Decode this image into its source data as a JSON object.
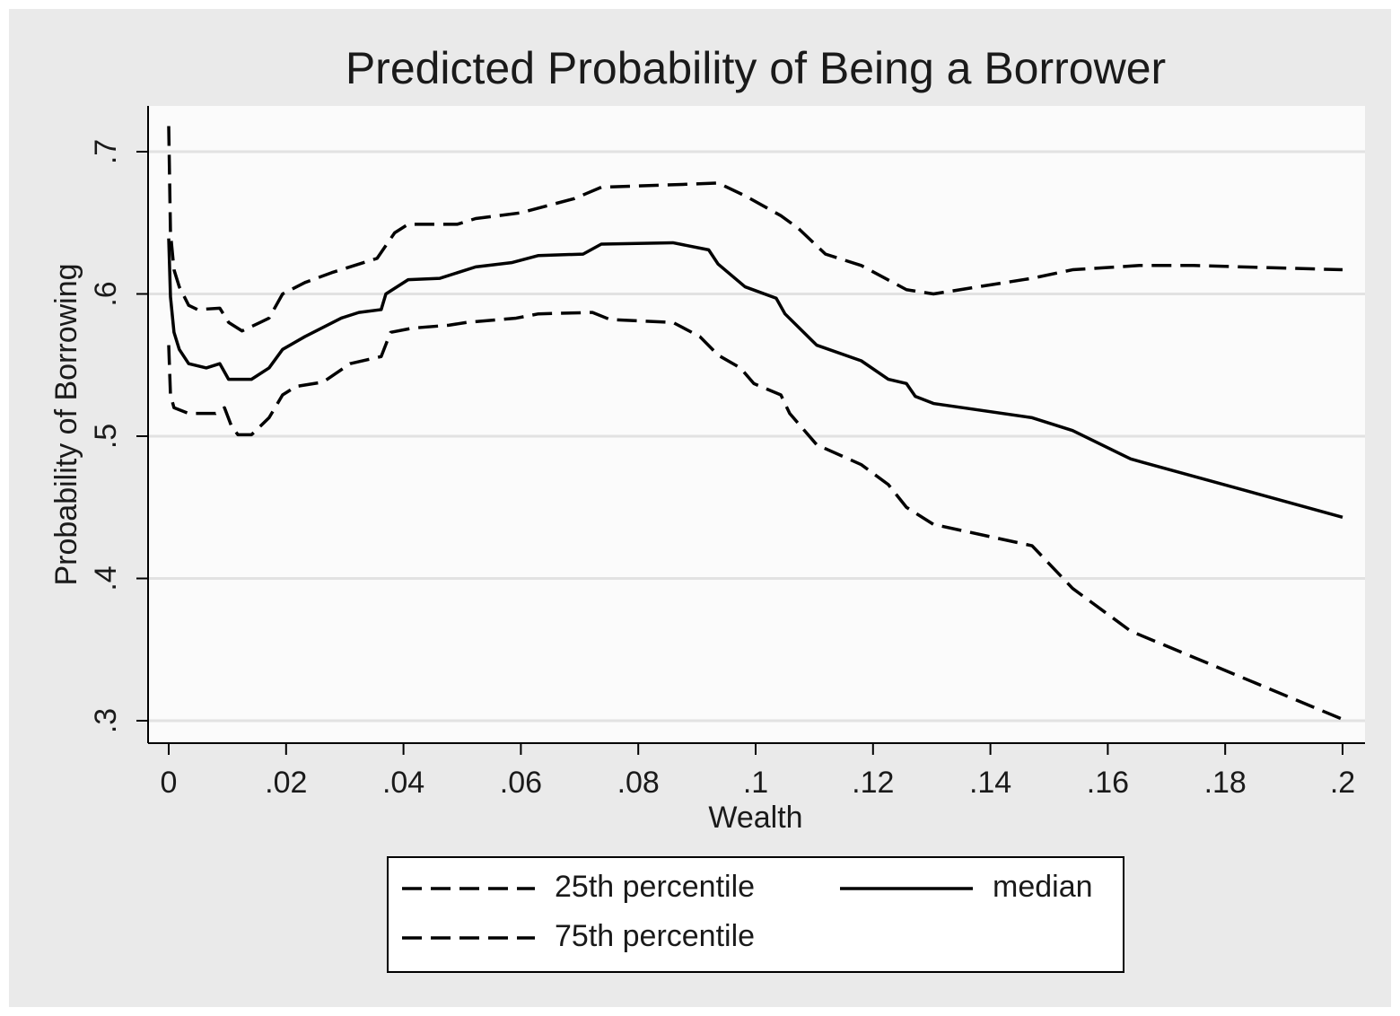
{
  "chart_data": {
    "type": "line",
    "title": "Predicted Probability of Being a Borrower",
    "x_label": "Wealth",
    "y_label": "Probability of Borrowing",
    "xlim": [
      0,
      0.2
    ],
    "ylim": [
      0.3,
      0.7
    ],
    "xticks": [
      0,
      {
        "value": 0.02,
        "label": ".02"
      },
      {
        "value": 0.04,
        "label": ".04"
      },
      {
        "value": 0.06,
        "label": ".06"
      },
      {
        "value": 0.08,
        "label": ".08"
      },
      {
        "value": 0.1,
        "label": ".1"
      },
      {
        "value": 0.12,
        "label": ".12"
      },
      {
        "value": 0.14,
        "label": ".14"
      },
      {
        "value": 0.16,
        "label": ".16"
      },
      {
        "value": 0.18,
        "label": ".18"
      },
      {
        "value": 0.2,
        "label": ".2"
      }
    ],
    "yticks": [
      {
        "value": 0.3,
        "label": ".3"
      },
      {
        "value": 0.4,
        "label": ".4"
      },
      {
        "value": 0.5,
        "label": ".5"
      },
      {
        "value": 0.6,
        "label": ".6"
      },
      {
        "value": 0.7,
        "label": ".7"
      }
    ],
    "grid": true,
    "series": [
      {
        "name": "25th percentile",
        "color": "#000000",
        "line_style": "dashed",
        "x": [
          0,
          0.0003,
          0.0009,
          0.0018,
          0.0034,
          0.0049,
          0.0087,
          0.0102,
          0.0125,
          0.0156,
          0.0171,
          0.0194,
          0.0232,
          0.0278,
          0.0355,
          0.0385,
          0.0408,
          0.0492,
          0.0523,
          0.0599,
          0.0691,
          0.0737,
          0.0875,
          0.0936,
          0.0982,
          0.1043,
          0.1073,
          0.1119,
          0.118,
          0.1257,
          0.1303,
          0.1394,
          0.1471,
          0.154,
          0.1654,
          0.1746,
          0.2
        ],
        "values": [
          0.718,
          0.643,
          0.617,
          0.605,
          0.592,
          0.589,
          0.59,
          0.58,
          0.574,
          0.58,
          0.583,
          0.6,
          0.608,
          0.615,
          0.625,
          0.643,
          0.649,
          0.649,
          0.653,
          0.657,
          0.667,
          0.675,
          0.677,
          0.678,
          0.669,
          0.655,
          0.646,
          0.628,
          0.62,
          0.603,
          0.6,
          0.606,
          0.611,
          0.617,
          0.62,
          0.62,
          0.617
        ]
      },
      {
        "name": "median",
        "color": "#000000",
        "line_style": "solid",
        "x": [
          0,
          0.0003,
          0.0009,
          0.0018,
          0.0034,
          0.0064,
          0.0087,
          0.0102,
          0.0141,
          0.0171,
          0.0194,
          0.0232,
          0.0294,
          0.0324,
          0.0362,
          0.037,
          0.0408,
          0.0462,
          0.0523,
          0.0584,
          0.063,
          0.0706,
          0.0737,
          0.0859,
          0.092,
          0.0936,
          0.0982,
          0.1035,
          0.105,
          0.1104,
          0.118,
          0.1226,
          0.1257,
          0.1272,
          0.1303,
          0.1471,
          0.154,
          0.1639,
          0.2
        ],
        "values": [
          0.639,
          0.598,
          0.573,
          0.561,
          0.551,
          0.548,
          0.551,
          0.54,
          0.54,
          0.548,
          0.561,
          0.57,
          0.583,
          0.587,
          0.589,
          0.6,
          0.61,
          0.611,
          0.619,
          0.622,
          0.627,
          0.628,
          0.635,
          0.636,
          0.631,
          0.621,
          0.605,
          0.597,
          0.586,
          0.564,
          0.553,
          0.54,
          0.537,
          0.528,
          0.523,
          0.513,
          0.504,
          0.484,
          0.443
        ]
      },
      {
        "name": "75th percentile",
        "color": "#000000",
        "line_style": "dashed",
        "x": [
          0,
          0.0003,
          0.0009,
          0.0034,
          0.008,
          0.0095,
          0.0107,
          0.0118,
          0.0141,
          0.0171,
          0.0194,
          0.0217,
          0.0263,
          0.0309,
          0.0362,
          0.0378,
          0.0416,
          0.0477,
          0.0508,
          0.0592,
          0.063,
          0.0722,
          0.0752,
          0.0859,
          0.0905,
          0.0936,
          0.0974,
          0.0997,
          0.1043,
          0.1058,
          0.1104,
          0.118,
          0.1226,
          0.1257,
          0.1303,
          0.1471,
          0.154,
          0.1639,
          0.2
        ],
        "values": [
          0.564,
          0.529,
          0.52,
          0.516,
          0.516,
          0.52,
          0.507,
          0.501,
          0.501,
          0.513,
          0.529,
          0.535,
          0.538,
          0.551,
          0.556,
          0.573,
          0.576,
          0.578,
          0.58,
          0.583,
          0.586,
          0.587,
          0.582,
          0.58,
          0.57,
          0.557,
          0.548,
          0.537,
          0.529,
          0.516,
          0.494,
          0.48,
          0.466,
          0.45,
          0.438,
          0.423,
          0.393,
          0.363,
          0.301
        ]
      }
    ]
  }
}
